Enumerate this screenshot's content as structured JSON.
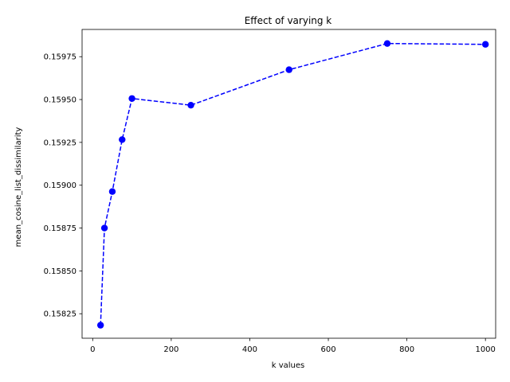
{
  "chart_data": {
    "type": "line",
    "title": "Effect of varying k",
    "xlabel": "k values",
    "ylabel": "mean_cosine_list_dissimilarity",
    "xlim": [
      -27,
      1026
    ],
    "ylim": [
      0.158107,
      0.159909
    ],
    "x_ticks": [
      0,
      200,
      400,
      600,
      800,
      1000
    ],
    "x_tick_labels": [
      "0",
      "200",
      "400",
      "600",
      "800",
      "1000"
    ],
    "y_ticks": [
      0.15825,
      0.1585,
      0.15875,
      0.159,
      0.15925,
      0.1595,
      0.15975
    ],
    "y_tick_labels": [
      "0.15825",
      "0.15850",
      "0.15875",
      "0.15900",
      "0.15925",
      "0.15950",
      "0.15975"
    ],
    "grid": false,
    "series": [
      {
        "color": "#0000ff",
        "line_style": "dashed",
        "marker": "circle",
        "x": [
          20,
          30,
          50,
          75,
          100,
          250,
          500,
          750,
          1000
        ],
        "y": [
          0.158183,
          0.15875,
          0.158963,
          0.159266,
          0.159506,
          0.159467,
          0.159674,
          0.159827,
          0.159822
        ]
      }
    ]
  }
}
